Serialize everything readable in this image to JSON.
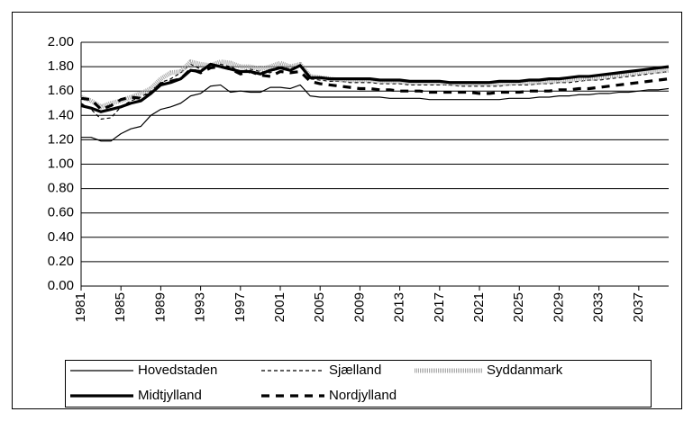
{
  "chart_data": {
    "type": "line",
    "x": [
      1981,
      1982,
      1983,
      1984,
      1985,
      1986,
      1987,
      1988,
      1989,
      1990,
      1991,
      1992,
      1993,
      1994,
      1995,
      1996,
      1997,
      1998,
      1999,
      2000,
      2001,
      2002,
      2003,
      2004,
      2005,
      2006,
      2007,
      2008,
      2009,
      2010,
      2011,
      2012,
      2013,
      2014,
      2015,
      2016,
      2017,
      2018,
      2019,
      2020,
      2021,
      2022,
      2023,
      2024,
      2025,
      2026,
      2027,
      2028,
      2029,
      2030,
      2031,
      2032,
      2033,
      2034,
      2035,
      2036,
      2037,
      2038,
      2039,
      2040
    ],
    "xlim": [
      1981,
      2040
    ],
    "xticks": [
      1981,
      1985,
      1989,
      1993,
      1997,
      2001,
      2005,
      2009,
      2013,
      2017,
      2021,
      2025,
      2029,
      2033,
      2037
    ],
    "ylim": [
      0,
      2
    ],
    "yticks": [
      {
        "value": 0,
        "label": "0.00"
      },
      {
        "value": 0.2,
        "label": "0.20"
      },
      {
        "value": 0.4,
        "label": "0.40"
      },
      {
        "value": 0.6,
        "label": "0.60"
      },
      {
        "value": 0.8,
        "label": "0.80"
      },
      {
        "value": 1,
        "label": "1.00"
      },
      {
        "value": 1.2,
        "label": "1.20"
      },
      {
        "value": 1.4,
        "label": "1.40"
      },
      {
        "value": 1.6,
        "label": "1.60"
      },
      {
        "value": 1.8,
        "label": "1.80"
      },
      {
        "value": 2,
        "label": "2.00"
      }
    ],
    "grid": true,
    "legend": "bottom",
    "series": [
      {
        "name": "Hovedstaden",
        "color": "#000000",
        "width": 1.2,
        "dash": "none",
        "values": [
          1.22,
          1.22,
          1.19,
          1.19,
          1.25,
          1.29,
          1.31,
          1.4,
          1.45,
          1.47,
          1.5,
          1.56,
          1.58,
          1.64,
          1.65,
          1.59,
          1.6,
          1.59,
          1.59,
          1.63,
          1.63,
          1.62,
          1.65,
          1.56,
          1.55,
          1.55,
          1.55,
          1.55,
          1.55,
          1.55,
          1.55,
          1.54,
          1.54,
          1.54,
          1.54,
          1.53,
          1.53,
          1.53,
          1.53,
          1.53,
          1.53,
          1.53,
          1.53,
          1.54,
          1.54,
          1.54,
          1.55,
          1.55,
          1.56,
          1.56,
          1.57,
          1.57,
          1.58,
          1.58,
          1.59,
          1.59,
          1.6,
          1.61,
          1.61,
          1.62
        ]
      },
      {
        "name": "Sjælland",
        "color": "#000000",
        "width": 1.2,
        "dash": "4 3",
        "values": [
          1.5,
          1.45,
          1.37,
          1.38,
          1.47,
          1.52,
          1.55,
          1.6,
          1.67,
          1.7,
          1.75,
          1.82,
          1.78,
          1.8,
          1.82,
          1.8,
          1.76,
          1.78,
          1.76,
          1.75,
          1.8,
          1.78,
          1.8,
          1.7,
          1.69,
          1.68,
          1.68,
          1.67,
          1.67,
          1.67,
          1.66,
          1.66,
          1.66,
          1.65,
          1.65,
          1.65,
          1.65,
          1.65,
          1.64,
          1.64,
          1.64,
          1.64,
          1.64,
          1.65,
          1.65,
          1.65,
          1.66,
          1.66,
          1.67,
          1.67,
          1.68,
          1.69,
          1.69,
          1.7,
          1.71,
          1.72,
          1.73,
          1.74,
          1.75,
          1.76
        ]
      },
      {
        "name": "Syddanmark",
        "color": "#a6a6a6",
        "width": 5,
        "dash": "1 1",
        "values": [
          1.55,
          1.52,
          1.47,
          1.5,
          1.52,
          1.55,
          1.58,
          1.62,
          1.7,
          1.75,
          1.76,
          1.84,
          1.82,
          1.81,
          1.84,
          1.83,
          1.8,
          1.8,
          1.78,
          1.8,
          1.83,
          1.8,
          1.82,
          1.72,
          1.71,
          1.7,
          1.69,
          1.69,
          1.69,
          1.69,
          1.68,
          1.68,
          1.68,
          1.67,
          1.67,
          1.67,
          1.67,
          1.66,
          1.66,
          1.66,
          1.66,
          1.66,
          1.66,
          1.66,
          1.67,
          1.67,
          1.67,
          1.68,
          1.68,
          1.69,
          1.7,
          1.7,
          1.71,
          1.72,
          1.73,
          1.74,
          1.75,
          1.76,
          1.76,
          1.77
        ]
      },
      {
        "name": "Midtjylland",
        "color": "#000000",
        "width": 3.2,
        "dash": "none",
        "values": [
          1.48,
          1.46,
          1.43,
          1.45,
          1.47,
          1.5,
          1.52,
          1.58,
          1.65,
          1.67,
          1.7,
          1.77,
          1.76,
          1.82,
          1.8,
          1.78,
          1.76,
          1.76,
          1.74,
          1.77,
          1.79,
          1.77,
          1.81,
          1.71,
          1.71,
          1.7,
          1.7,
          1.7,
          1.7,
          1.7,
          1.69,
          1.69,
          1.69,
          1.68,
          1.68,
          1.68,
          1.68,
          1.67,
          1.67,
          1.67,
          1.67,
          1.67,
          1.68,
          1.68,
          1.68,
          1.69,
          1.69,
          1.7,
          1.7,
          1.71,
          1.72,
          1.72,
          1.73,
          1.74,
          1.75,
          1.76,
          1.77,
          1.78,
          1.79,
          1.8
        ]
      },
      {
        "name": "Nordjylland",
        "color": "#000000",
        "width": 3.2,
        "dash": "9 7",
        "values": [
          1.54,
          1.53,
          1.45,
          1.48,
          1.53,
          1.55,
          1.54,
          1.58,
          1.66,
          1.68,
          1.7,
          1.78,
          1.75,
          1.79,
          1.8,
          1.78,
          1.74,
          1.76,
          1.73,
          1.72,
          1.76,
          1.75,
          1.76,
          1.68,
          1.66,
          1.65,
          1.64,
          1.63,
          1.62,
          1.62,
          1.61,
          1.61,
          1.6,
          1.6,
          1.6,
          1.59,
          1.59,
          1.59,
          1.59,
          1.59,
          1.58,
          1.58,
          1.59,
          1.59,
          1.59,
          1.6,
          1.6,
          1.6,
          1.61,
          1.61,
          1.62,
          1.62,
          1.63,
          1.64,
          1.65,
          1.66,
          1.67,
          1.68,
          1.69,
          1.7
        ]
      }
    ]
  }
}
